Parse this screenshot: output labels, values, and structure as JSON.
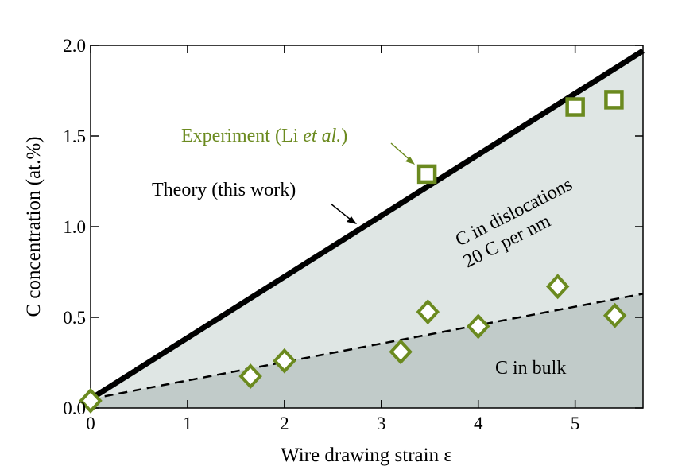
{
  "chart_data": {
    "type": "scatter",
    "xlabel": "Wire drawing strain ε",
    "ylabel": "C concentration (at.%)",
    "xlim": [
      0,
      5.7
    ],
    "ylim": [
      0,
      2.0
    ],
    "xticks": [
      "0",
      "1",
      "2",
      "3",
      "4",
      "5"
    ],
    "xtick_values": [
      0,
      1,
      2,
      3,
      4,
      5
    ],
    "yticks": [
      "0.0",
      "0.5",
      "1.0",
      "1.5",
      "2.0"
    ],
    "ytick_values": [
      0,
      0.5,
      1.0,
      1.5,
      2.0
    ],
    "grid": false,
    "colors": {
      "experiment": "#6b8a1f",
      "theory": "#000000",
      "region_dislocations": "#dfe6e4",
      "region_bulk": "#c1cbc9"
    },
    "series": [
      {
        "kind": "line",
        "style": "solid",
        "x": [
          0,
          5.7
        ],
        "y": [
          0.05,
          1.97
        ]
      },
      {
        "kind": "line",
        "style": "dashed",
        "x": [
          0,
          5.7
        ],
        "y": [
          0.05,
          0.63
        ]
      },
      {
        "kind": "scatter",
        "marker": "square",
        "x": [
          3.47,
          5.0,
          5.4
        ],
        "y": [
          1.29,
          1.66,
          1.7
        ]
      },
      {
        "kind": "scatter",
        "marker": "diamond",
        "x": [
          0,
          1.65,
          2.0,
          3.2,
          3.48,
          4.0,
          4.82,
          5.41
        ],
        "y": [
          0.04,
          0.175,
          0.26,
          0.31,
          0.53,
          0.45,
          0.67,
          0.51
        ]
      }
    ],
    "annotations": {
      "experiment": "Experiment (Li ",
      "experiment_italic": "et al.",
      "experiment_close": ")",
      "theory": "Theory (this work)",
      "dislocations_1": "C in dislocations",
      "dislocations_2": "20 C per nm",
      "bulk": "C in bulk"
    }
  }
}
